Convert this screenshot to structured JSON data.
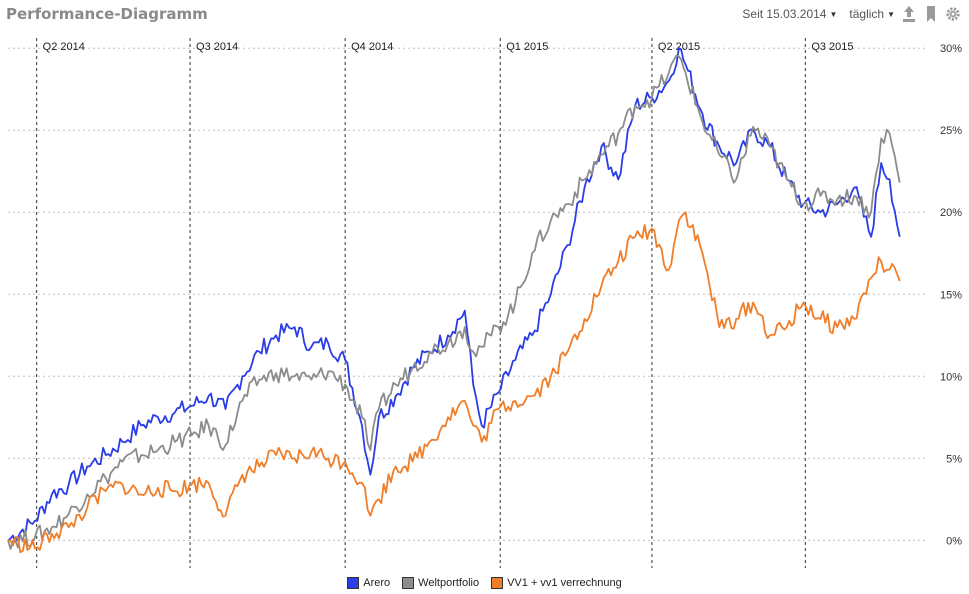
{
  "header": {
    "title": "Performance-Diagramm",
    "since_label": "Seit 15.03.2014",
    "interval_label": "täglich"
  },
  "icons": [
    "upload-icon",
    "bookmark-icon",
    "gear-icon"
  ],
  "colors": {
    "Arero": "#2a3de6",
    "Weltportfolio": "#8c8c8c",
    "VV1 + vv1 verrechnung": "#f07d28",
    "header_text": "#8a8a8a"
  },
  "chart_data": {
    "type": "line",
    "title": "Performance-Diagramm",
    "y_tick_labels": [
      "0%",
      "5%",
      "10%",
      "15%",
      "20%",
      "25%",
      "30%"
    ],
    "ylim": [
      -1.2,
      30.5
    ],
    "xlim": [
      "2014-03-15",
      "2015-09-10"
    ],
    "grid": true,
    "legend_position": "bottom",
    "quarter_markers": [
      {
        "label": "Q2 2014",
        "date": "2014-04-01"
      },
      {
        "label": "Q3 2014",
        "date": "2014-07-01"
      },
      {
        "label": "Q4 2014",
        "date": "2014-10-01"
      },
      {
        "label": "Q1 2015",
        "date": "2015-01-01"
      },
      {
        "label": "Q2 2015",
        "date": "2015-04-01"
      },
      {
        "label": "Q3 2015",
        "date": "2015-07-01"
      }
    ],
    "x": [
      "2014-03-15",
      "2014-03-31",
      "2014-04-10",
      "2014-04-20",
      "2014-05-01",
      "2014-05-12",
      "2014-05-22",
      "2014-06-02",
      "2014-06-12",
      "2014-06-22",
      "2014-07-02",
      "2014-07-12",
      "2014-07-22",
      "2014-08-01",
      "2014-08-11",
      "2014-08-21",
      "2014-09-01",
      "2014-09-11",
      "2014-09-21",
      "2014-10-01",
      "2014-10-11",
      "2014-10-16",
      "2014-10-21",
      "2014-10-31",
      "2014-11-10",
      "2014-11-20",
      "2014-12-01",
      "2014-12-11",
      "2014-12-16",
      "2014-12-21",
      "2014-12-31",
      "2015-01-10",
      "2015-01-20",
      "2015-01-31",
      "2015-02-10",
      "2015-02-20",
      "2015-03-02",
      "2015-03-12",
      "2015-03-22",
      "2015-04-01",
      "2015-04-11",
      "2015-04-17",
      "2015-04-21",
      "2015-05-01",
      "2015-05-11",
      "2015-05-21",
      "2015-05-31",
      "2015-06-10",
      "2015-06-20",
      "2015-06-30",
      "2015-07-10",
      "2015-07-20",
      "2015-07-30",
      "2015-08-09",
      "2015-08-15",
      "2015-08-20",
      "2015-08-26"
    ],
    "series": [
      {
        "name": "Arero",
        "values": [
          0,
          1.2,
          2.8,
          3.4,
          4.5,
          5.2,
          6.0,
          7.0,
          7.5,
          7.8,
          8.2,
          8.8,
          8.0,
          10.0,
          11.5,
          12.5,
          13.0,
          11.8,
          12.0,
          11.0,
          7.0,
          4.0,
          7.5,
          8.8,
          10.5,
          11.5,
          12.5,
          14.0,
          9.5,
          7.0,
          9.0,
          11.0,
          12.5,
          15.0,
          18.0,
          21.5,
          24.0,
          22.0,
          26.5,
          27.0,
          28.0,
          30.0,
          29.0,
          26.0,
          24.0,
          23.0,
          25.0,
          24.0,
          22.0,
          20.5,
          20.0,
          20.5,
          21.5,
          18.5,
          23.0,
          22.0,
          18.5
        ]
      },
      {
        "name": "Weltportfolio",
        "values": [
          0,
          0.2,
          0.8,
          1.6,
          2.8,
          3.8,
          4.8,
          5.2,
          5.5,
          6.0,
          6.4,
          7.0,
          5.8,
          8.5,
          9.8,
          10.2,
          10.0,
          9.8,
          10.3,
          9.5,
          7.5,
          5.5,
          8.0,
          9.5,
          10.5,
          11.5,
          12.0,
          13.0,
          11.5,
          11.8,
          13.0,
          14.5,
          17.5,
          19.5,
          20.5,
          22.0,
          23.5,
          24.8,
          26.5,
          27.0,
          28.5,
          29.5,
          28.5,
          25.5,
          23.5,
          22.0,
          25.2,
          24.0,
          22.0,
          20.5,
          21.0,
          20.8,
          21.0,
          20.0,
          24.5,
          24.8,
          21.8
        ]
      },
      {
        "name": "VV1 + vv1 verrechnung",
        "values": [
          0,
          -0.5,
          0.4,
          0.8,
          2.0,
          3.0,
          3.4,
          2.8,
          3.2,
          3.0,
          3.4,
          3.5,
          1.5,
          4.0,
          4.5,
          5.2,
          5.0,
          5.4,
          5.0,
          4.8,
          3.5,
          1.5,
          2.5,
          4.5,
          4.8,
          6.0,
          7.5,
          8.5,
          7.0,
          6.0,
          8.0,
          8.5,
          8.8,
          10.0,
          11.5,
          13.5,
          15.5,
          17.0,
          18.5,
          19.0,
          16.5,
          19.5,
          20.0,
          17.5,
          13.0,
          13.5,
          14.5,
          12.5,
          13.0,
          14.5,
          13.5,
          13.0,
          13.5,
          16.0,
          17.0,
          16.5,
          15.8
        ]
      }
    ]
  },
  "legend": {
    "items": [
      {
        "label": "Arero",
        "color": "#2a3de6"
      },
      {
        "label": "Weltportfolio",
        "color": "#8c8c8c"
      },
      {
        "label": "VV1 + vv1 verrechnung",
        "color": "#f07d28"
      }
    ]
  }
}
